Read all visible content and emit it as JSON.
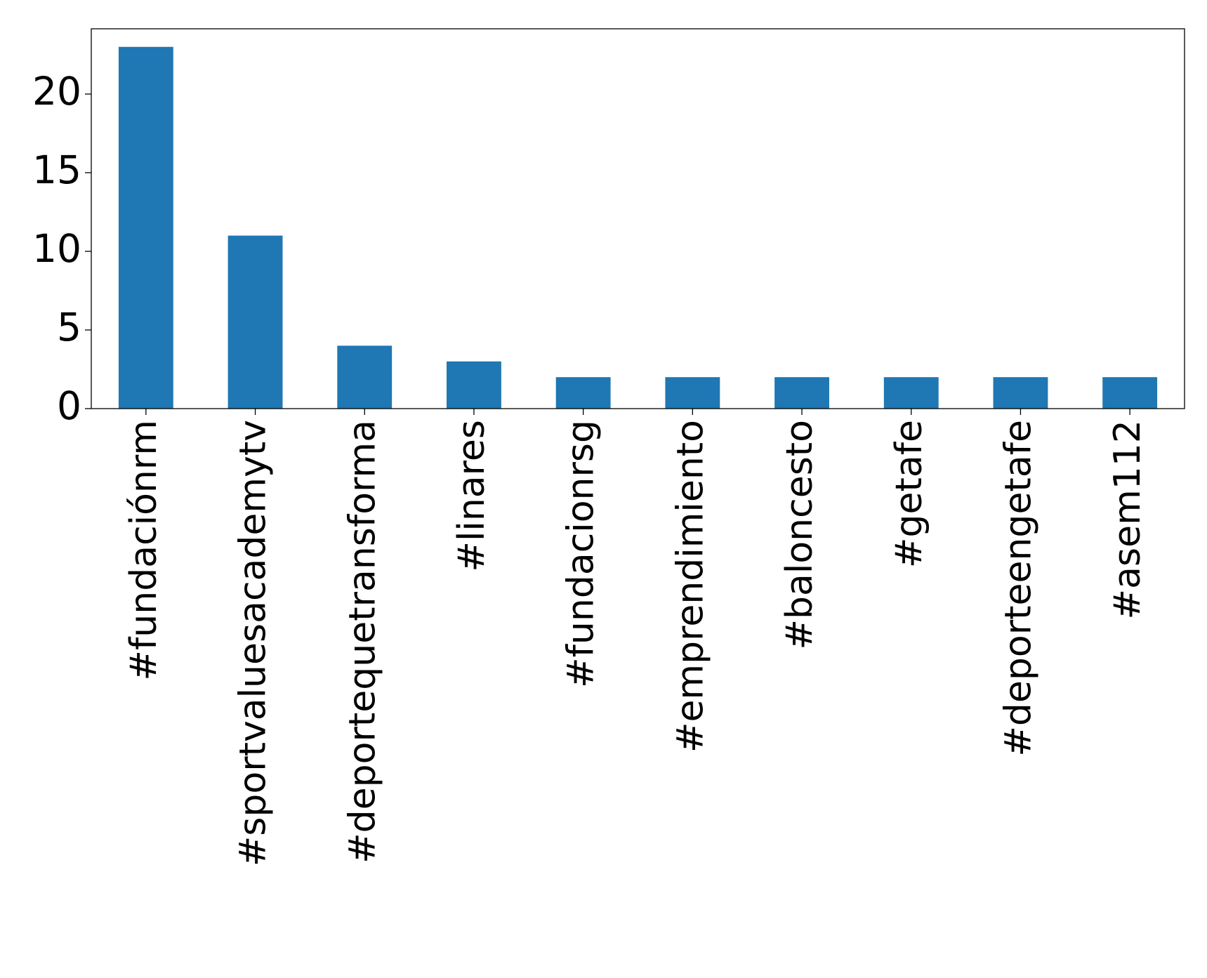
{
  "chart_data": {
    "type": "bar",
    "categories": [
      "#fundaciónrm",
      "#sportvaluesacademytv",
      "#deportequetransforma",
      "#linares",
      "#fundacionrsg",
      "#emprendimiento",
      "#baloncesto",
      "#getafe",
      "#deporteengetafe",
      "#asem112"
    ],
    "values": [
      23,
      11,
      4,
      3,
      2,
      2,
      2,
      2,
      2,
      2
    ],
    "color": "#1f77b4",
    "ylim": [
      0,
      24.15
    ],
    "yticks": [
      0,
      5,
      10,
      15,
      20
    ],
    "grid": false
  }
}
